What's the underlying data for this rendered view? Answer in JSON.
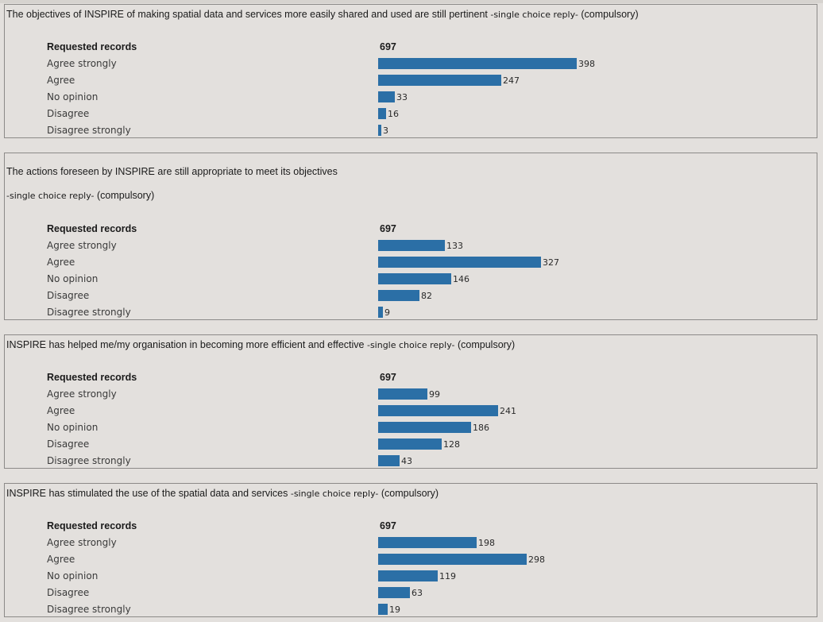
{
  "requested_label": "Requested records",
  "answer_labels": [
    "Agree strongly",
    "Agree",
    "No opinion",
    "Disagree",
    "Disagree strongly"
  ],
  "reply_tag": "-single choice reply-",
  "compulsory": "(compulsory)",
  "bar_color": "#2b6fa6",
  "chart_data": [
    {
      "type": "bar",
      "title": "The objectives of INSPIRE of making spatial data and services more easily shared and used are still pertinent",
      "total": 697,
      "categories": [
        "Agree strongly",
        "Agree",
        "No opinion",
        "Disagree",
        "Disagree strongly"
      ],
      "values": [
        398,
        247,
        33,
        16,
        3
      ]
    },
    {
      "type": "bar",
      "title": "The actions foreseen by INSPIRE are still appropriate to meet its objectives",
      "total": 697,
      "categories": [
        "Agree strongly",
        "Agree",
        "No opinion",
        "Disagree",
        "Disagree strongly"
      ],
      "values": [
        133,
        327,
        146,
        82,
        9
      ]
    },
    {
      "type": "bar",
      "title": "INSPIRE has helped me/my organisation in becoming more efficient and effective",
      "total": 697,
      "categories": [
        "Agree strongly",
        "Agree",
        "No opinion",
        "Disagree",
        "Disagree strongly"
      ],
      "values": [
        99,
        241,
        186,
        128,
        43
      ]
    },
    {
      "type": "bar",
      "title": "INSPIRE has stimulated the use of the spatial data and services",
      "total": 697,
      "categories": [
        "Agree strongly",
        "Agree",
        "No opinion",
        "Disagree",
        "Disagree strongly"
      ],
      "values": [
        198,
        298,
        119,
        63,
        19
      ]
    }
  ]
}
